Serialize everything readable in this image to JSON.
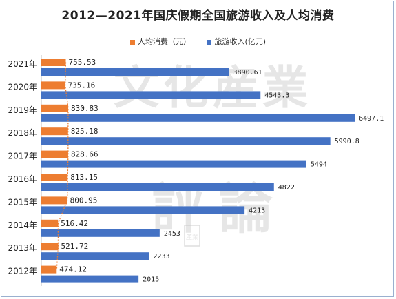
{
  "colors": {
    "per_capita": "#ED7D31",
    "revenue": "#4472C4",
    "frame": "#9AB0CF",
    "text": "#333333"
  },
  "watermark": {
    "line1": "文化産業",
    "line2": "評論",
    "seal": "產業"
  },
  "chart_data": {
    "type": "bar",
    "orientation": "horizontal",
    "title": "2012—2021年国庆假期全国旅游收入及人均消费",
    "categories": [
      "2021年",
      "2020年",
      "2019年",
      "2018年",
      "2017年",
      "2016年",
      "2015年",
      "2014年",
      "2013年",
      "2012年"
    ],
    "series": [
      {
        "name": "人均消费（元）",
        "values": [
          755.53,
          735.16,
          830.83,
          825.18,
          828.66,
          813.15,
          800.95,
          516.42,
          521.72,
          474.12
        ],
        "labels": [
          "755.53",
          "735.16",
          "830.83",
          "825.18",
          "828.66",
          "813.15",
          "800.95",
          "516.42",
          "521.72",
          "474.12"
        ]
      },
      {
        "name": "旅游收入(亿元)",
        "values": [
          3890.61,
          4543.3,
          6497.1,
          5990.8,
          5494,
          4822,
          4213,
          2453,
          2233,
          2015
        ],
        "labels": [
          "3890.61",
          "4543.3",
          "6497.1",
          "5990.8",
          "5494",
          "4822",
          "4213",
          "2453",
          "2233",
          "2015"
        ]
      }
    ],
    "legend_position": "top",
    "grid": false,
    "xlabel": "",
    "ylabel": ""
  }
}
